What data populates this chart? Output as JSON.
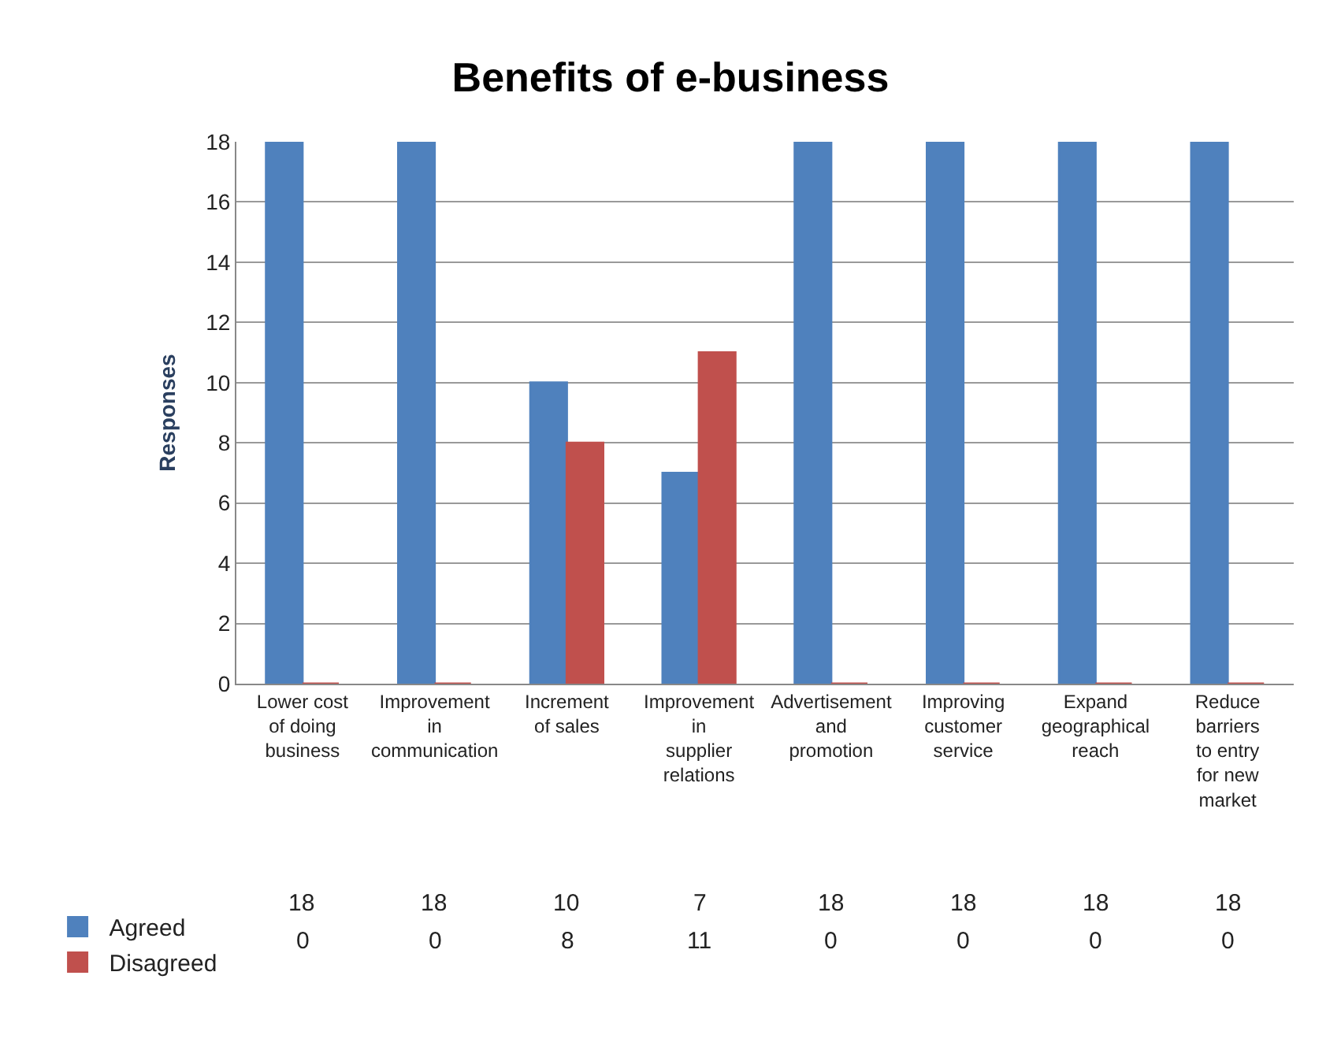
{
  "chart_data": {
    "type": "bar",
    "title": "Benefits of e-business",
    "ylabel": "Responses",
    "categories": [
      "Lower cost of doing business",
      "Improvement in communication",
      "Increment of sales",
      "Improvement in supplier relations",
      "Advertisement and promotion",
      "Improving customer service",
      "Expand geographical reach",
      "Reduce barriers to entry for new market"
    ],
    "series": [
      {
        "name": "Agreed",
        "color": "#4f81bd",
        "values": [
          18,
          18,
          10,
          7,
          18,
          18,
          18,
          18
        ]
      },
      {
        "name": "Disagreed",
        "color": "#c0504d",
        "values": [
          0,
          0,
          8,
          11,
          0,
          0,
          0,
          0
        ]
      }
    ],
    "ylim": [
      0,
      18
    ],
    "yticks": [
      0,
      2,
      4,
      6,
      8,
      10,
      12,
      14,
      16,
      18
    ],
    "grid": "y",
    "data_labels": true,
    "legend": "bottom left"
  }
}
